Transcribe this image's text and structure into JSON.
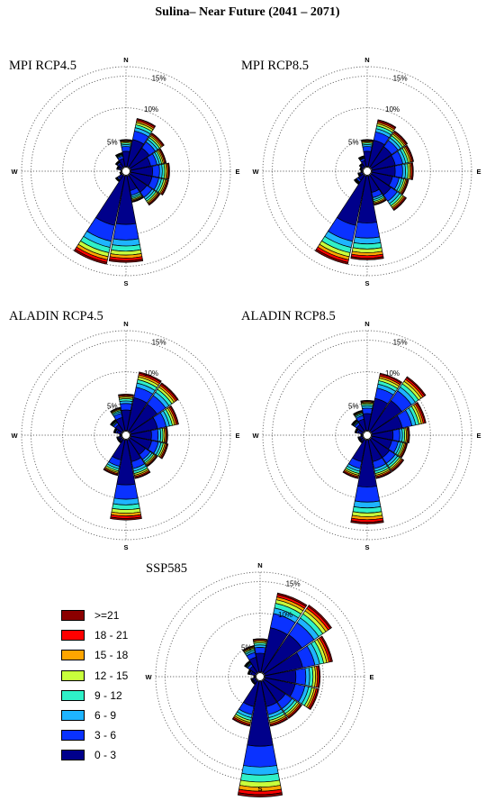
{
  "page_title": "Sulina– Near Future (2041 – 2071)",
  "cardinals": [
    "N",
    "E",
    "S",
    "W"
  ],
  "ring_labels": [
    "5%",
    "10%",
    "15%"
  ],
  "legend": [
    {
      "label": ">=21",
      "color": "#8b0000"
    },
    {
      "label": "18 - 21",
      "color": "#ff0000"
    },
    {
      "label": "15 - 18",
      "color": "#ffa500"
    },
    {
      "label": "12 - 15",
      "color": "#c8ff3c"
    },
    {
      "label": "9 - 12",
      "color": "#2ff0c8"
    },
    {
      "label": "6 - 9",
      "color": "#1eb4ff"
    },
    {
      "label": "3 - 6",
      "color": "#0a32ff"
    },
    {
      "label": "0 - 3",
      "color": "#00008b"
    }
  ],
  "chart_data": [
    {
      "type": "wind-rose",
      "title": "MPI RCP4.5",
      "rings_percent": [
        5,
        10,
        15
      ],
      "direction_bins": 16,
      "directions": [
        "N",
        "NNE",
        "NE",
        "ENE",
        "E",
        "ESE",
        "SE",
        "SSE",
        "S",
        "SSW",
        "SW",
        "WSW",
        "W",
        "WNW",
        "NW",
        "NNW"
      ],
      "speed_bins": [
        "0 - 3",
        "3 - 6",
        "6 - 9",
        "9 - 12",
        "12 - 15",
        "15 - 18",
        "18 - 21",
        ">=21"
      ],
      "totals_percent": [
        5.0,
        8.5,
        7.3,
        6.5,
        6.9,
        6.9,
        6.5,
        5.0,
        14.4,
        15.0,
        2.0,
        1.0,
        0.8,
        1.5,
        2.0,
        3.0
      ]
    },
    {
      "type": "wind-rose",
      "title": "MPI RCP8.5",
      "rings_percent": [
        5,
        10,
        15
      ],
      "direction_bins": 16,
      "directions": [
        "N",
        "NNE",
        "NE",
        "ENE",
        "E",
        "ESE",
        "SE",
        "SSE",
        "S",
        "SSW",
        "SW",
        "WSW",
        "W",
        "WNW",
        "NW",
        "NNW"
      ],
      "speed_bins": [
        "0 - 3",
        "3 - 6",
        "6 - 9",
        "9 - 12",
        "12 - 15",
        "15 - 18",
        "18 - 21",
        ">=21"
      ],
      "totals_percent": [
        5.0,
        8.3,
        7.7,
        7.5,
        7.3,
        6.7,
        7.5,
        5.5,
        14.0,
        15.0,
        2.5,
        1.5,
        1.0,
        1.2,
        1.5,
        2.5
      ]
    },
    {
      "type": "wind-rose",
      "title": "ALADIN RCP4.5",
      "rings_percent": [
        5,
        10,
        15
      ],
      "direction_bins": 16,
      "directions": [
        "N",
        "NNE",
        "NE",
        "ENE",
        "E",
        "ESE",
        "SE",
        "SSE",
        "S",
        "SSW",
        "SW",
        "WSW",
        "W",
        "WNW",
        "NW",
        "NNW"
      ],
      "speed_bins": [
        "0 - 3",
        "3 - 6",
        "6 - 9",
        "9 - 12",
        "12 - 15",
        "15 - 18",
        "18 - 21",
        ">=21"
      ],
      "totals_percent": [
        6.5,
        10.2,
        10.0,
        8.5,
        6.6,
        6.8,
        6.0,
        7.0,
        13.4,
        6.5,
        1.5,
        1.5,
        1.0,
        2.0,
        3.0,
        4.5
      ]
    },
    {
      "type": "wind-rose",
      "title": "ALADIN RCP8.5",
      "rings_percent": [
        5,
        10,
        15
      ],
      "direction_bins": 16,
      "directions": [
        "N",
        "NNE",
        "NE",
        "ENE",
        "E",
        "ESE",
        "SE",
        "SSE",
        "S",
        "SSW",
        "SW",
        "WSW",
        "W",
        "WNW",
        "NW",
        "NNW"
      ],
      "speed_bins": [
        "0 - 3",
        "3 - 6",
        "6 - 9",
        "9 - 12",
        "12 - 15",
        "15 - 18",
        "18 - 21",
        ">=21"
      ],
      "totals_percent": [
        5.5,
        10.0,
        11.2,
        9.5,
        6.7,
        6.5,
        7.0,
        7.0,
        14.0,
        7.0,
        1.5,
        1.5,
        1.0,
        2.0,
        3.0,
        4.0
      ]
    },
    {
      "type": "wind-rose",
      "title": "SSP585",
      "rings_percent": [
        5,
        10,
        15
      ],
      "direction_bins": 16,
      "directions": [
        "N",
        "NNE",
        "NE",
        "ENE",
        "E",
        "ESE",
        "SE",
        "SSE",
        "S",
        "SSW",
        "SW",
        "WSW",
        "W",
        "WNW",
        "NW",
        "NNW"
      ],
      "speed_bins": [
        "0 - 3",
        "3 - 6",
        "6 - 9",
        "9 - 12",
        "12 - 15",
        "15 - 18",
        "18 - 21",
        ">=21"
      ],
      "totals_percent": [
        6.0,
        13.5,
        13.7,
        11.7,
        9.5,
        9.5,
        8.0,
        8.0,
        19.0,
        8.0,
        1.5,
        1.5,
        1.0,
        2.0,
        3.0,
        5.0
      ]
    }
  ]
}
